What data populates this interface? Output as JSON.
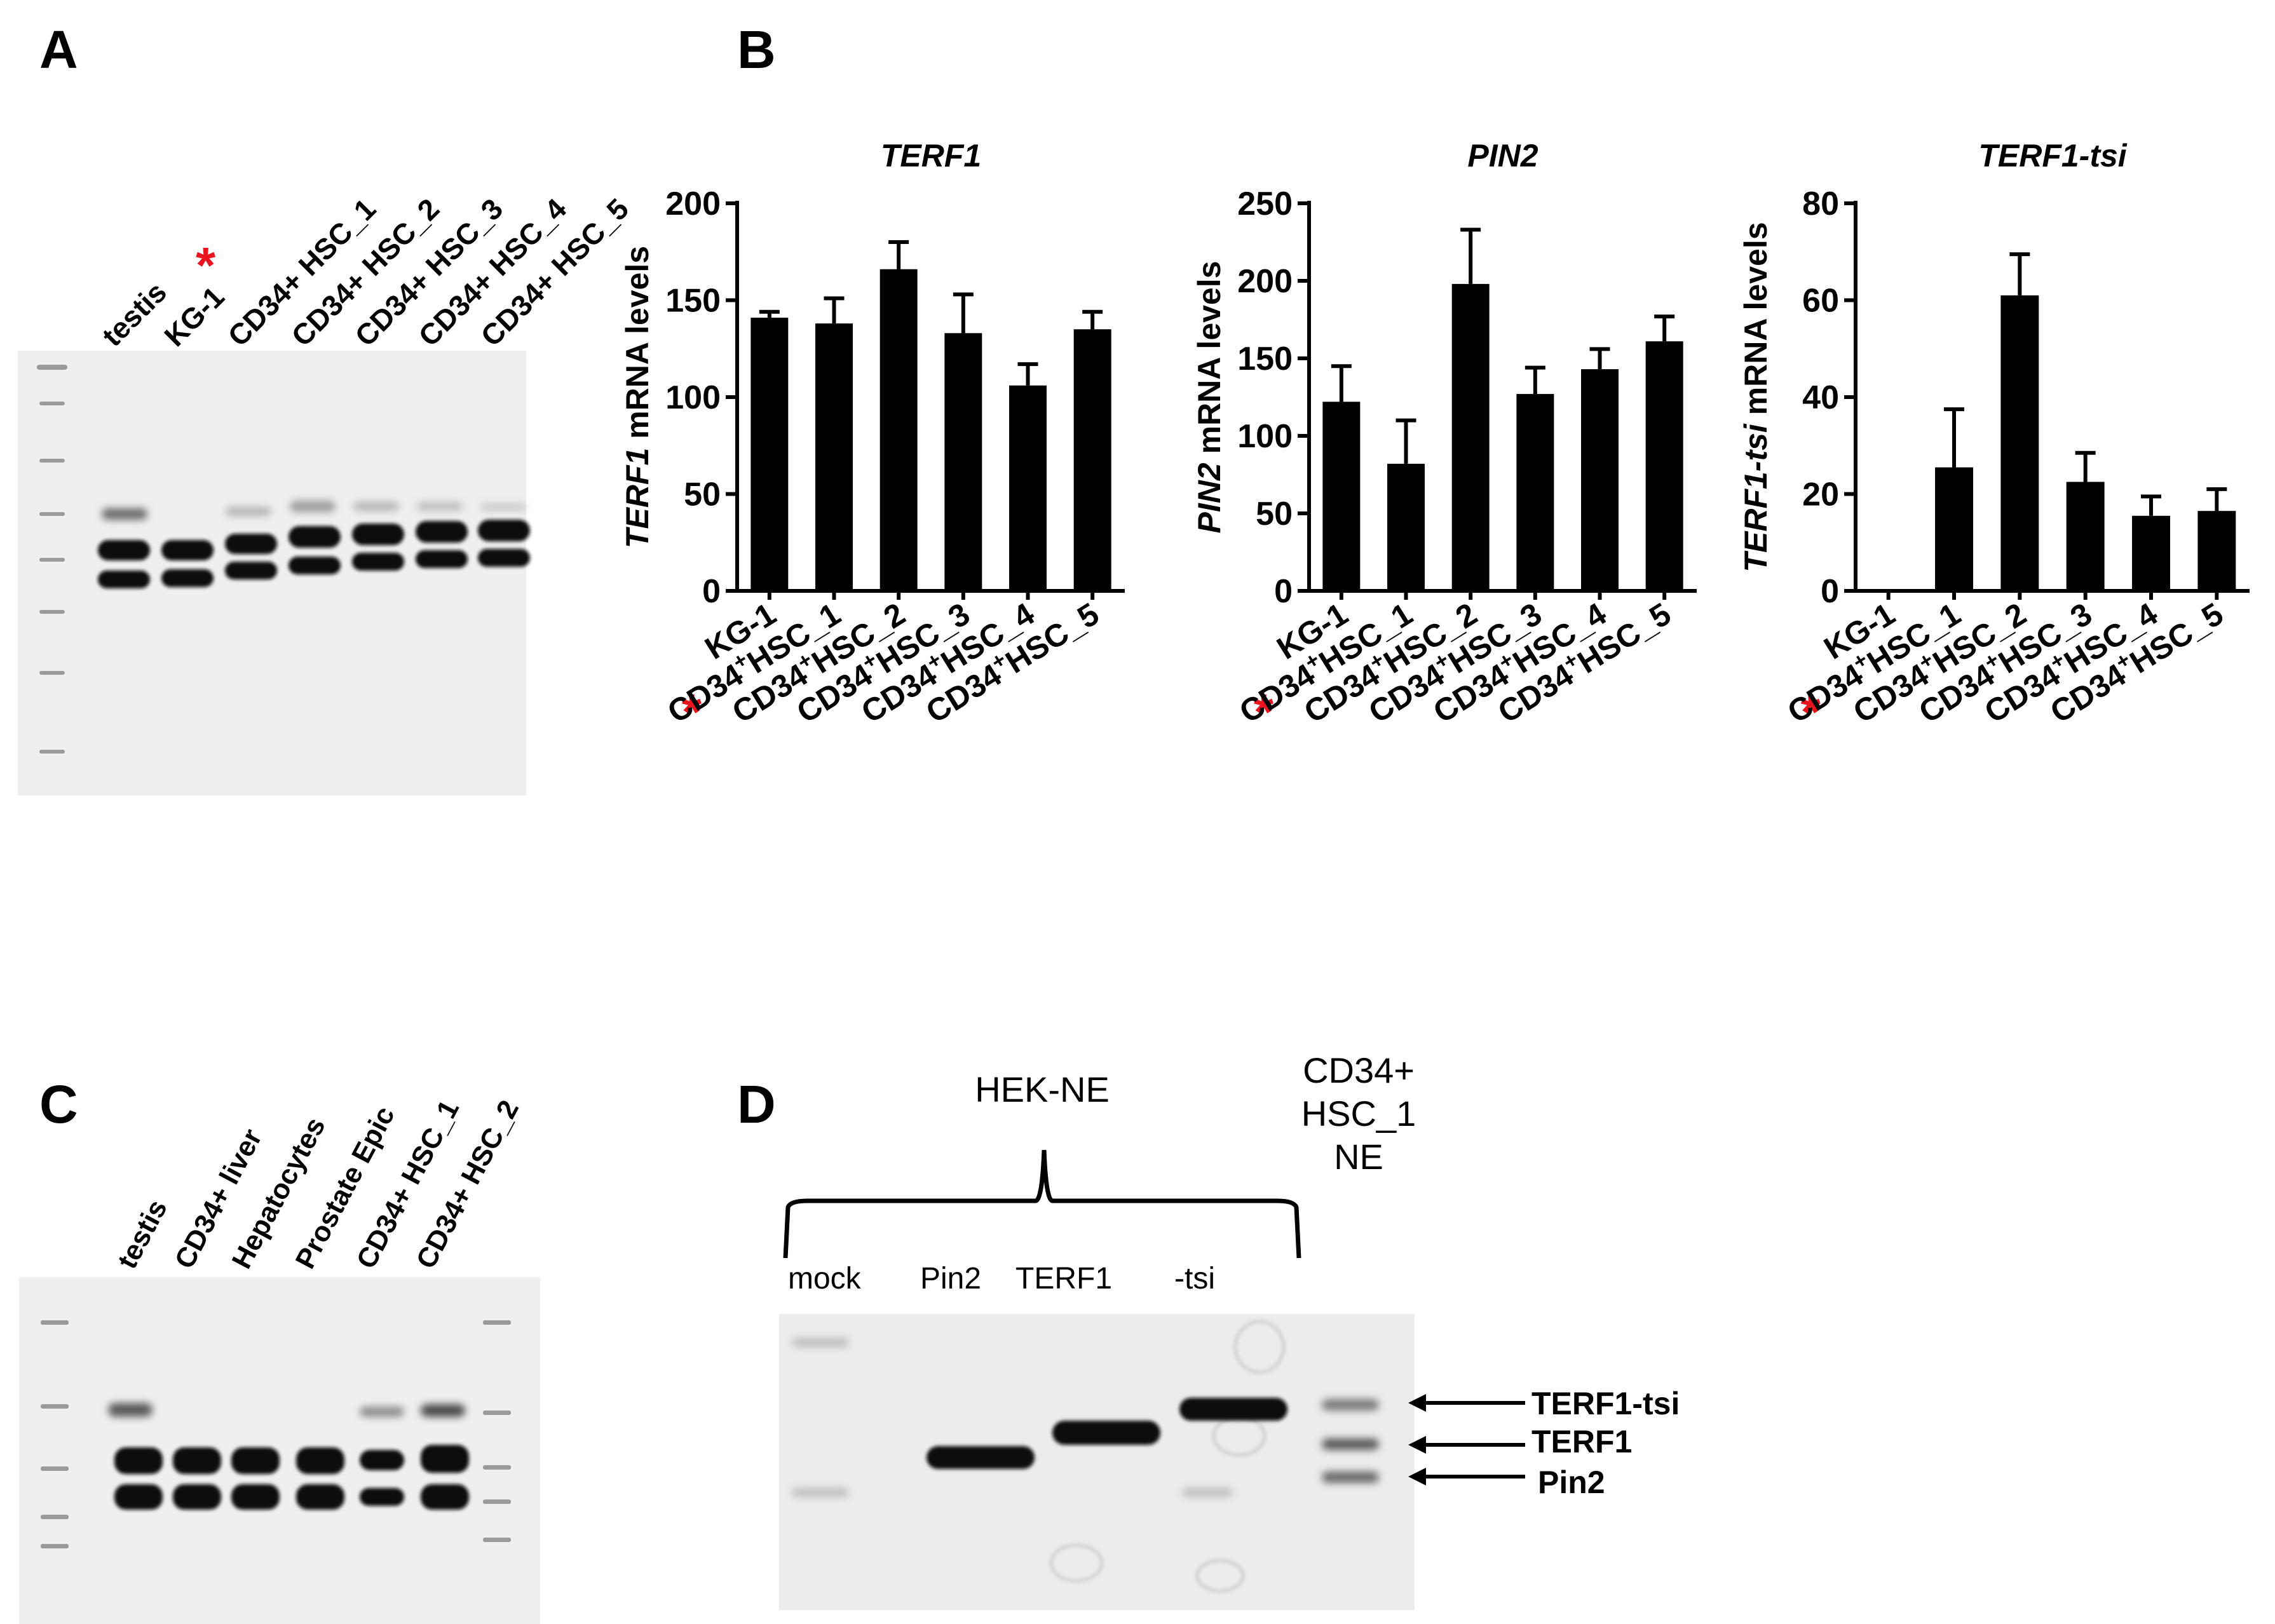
{
  "panels": {
    "A": {
      "letter": "A",
      "lane_labels": [
        "testis",
        "KG-1",
        "CD34+ HSC_1",
        "CD34+ HSC_2",
        "CD34+ HSC_3",
        "CD34+ HSC_4",
        "CD34+ HSC_5"
      ],
      "asterisk": "*"
    },
    "B": {
      "letter": "B"
    },
    "C": {
      "letter": "C",
      "lane_labels": [
        "testis",
        "CD34+ liver",
        "Hepatocytes",
        "Prostate Epic",
        "CD34+ HSC_1",
        "CD34+ HSC_2"
      ]
    },
    "D": {
      "letter": "D",
      "group_label": "HEK-NE",
      "side_label_lines": [
        "CD34+",
        "HSC_1",
        "NE"
      ],
      "lane_labels": [
        "mock",
        "Pin2",
        "TERF1",
        "-tsi"
      ],
      "band_labels": [
        "TERF1-tsi",
        "TERF1",
        "Pin2"
      ]
    }
  },
  "colors": {
    "bar": "#000000",
    "asterisk": "#e8141e",
    "gel_bg": "#efefef",
    "band": "#0a0a0a"
  },
  "chart_data": [
    {
      "type": "bar",
      "title": "TERF1",
      "ylabel_italic": "TERF1",
      "ylabel_rest": " mRNA levels",
      "categories": [
        "KG-1",
        "CD34+HSC_1",
        "CD34+HSC_2",
        "CD34+HSC_3",
        "CD34+HSC_4",
        "CD34+HSC_5"
      ],
      "tick_prefix": [
        "KG-1",
        "CD34",
        "CD34",
        "CD34",
        "CD34",
        "CD34"
      ],
      "tick_suffix": [
        "",
        "HSC_1",
        "HSC_2",
        "HSC_3",
        "HSC_4",
        "HSC_5"
      ],
      "values": [
        141,
        138,
        166,
        133,
        106,
        135
      ],
      "errors": [
        3,
        13,
        14,
        20,
        11,
        9
      ],
      "ylim": [
        0,
        200
      ],
      "yticks": [
        0,
        50,
        100,
        150,
        200
      ]
    },
    {
      "type": "bar",
      "title": "PIN2",
      "ylabel_italic": "PIN2",
      "ylabel_rest": " mRNA levels",
      "categories": [
        "KG-1",
        "CD34+HSC_1",
        "CD34+HSC_2",
        "CD34+HSC_3",
        "CD34+HSC_4",
        "CD34+HSC_5"
      ],
      "tick_prefix": [
        "KG-1",
        "CD34",
        "CD34",
        "CD34",
        "CD34",
        "CD34"
      ],
      "tick_suffix": [
        "",
        "HSC_1",
        "HSC_2",
        "HSC_3",
        "HSC_4",
        "HSC_5"
      ],
      "values": [
        122,
        82,
        198,
        127,
        143,
        161
      ],
      "errors": [
        23,
        28,
        35,
        17,
        13,
        16
      ],
      "ylim": [
        0,
        250
      ],
      "yticks": [
        0,
        50,
        100,
        150,
        200,
        250
      ]
    },
    {
      "type": "bar",
      "title": "TERF1-tsi",
      "ylabel_italic": "TERF1-tsi",
      "ylabel_rest": " mRNA levels",
      "categories": [
        "KG-1",
        "CD34+HSC_1",
        "CD34+HSC_2",
        "CD34+HSC_3",
        "CD34+HSC_4",
        "CD34+HSC_5"
      ],
      "tick_prefix": [
        "KG-1",
        "CD34",
        "CD34",
        "CD34",
        "CD34",
        "CD34"
      ],
      "tick_suffix": [
        "",
        "HSC_1",
        "HSC_2",
        "HSC_3",
        "HSC_4",
        "HSC_5"
      ],
      "values": [
        0,
        25.5,
        61,
        22.5,
        15.5,
        16.5
      ],
      "errors": [
        0,
        12,
        8.5,
        6,
        4,
        4.5
      ],
      "ylim": [
        0,
        80
      ],
      "yticks": [
        0,
        20,
        40,
        60,
        80
      ]
    }
  ]
}
